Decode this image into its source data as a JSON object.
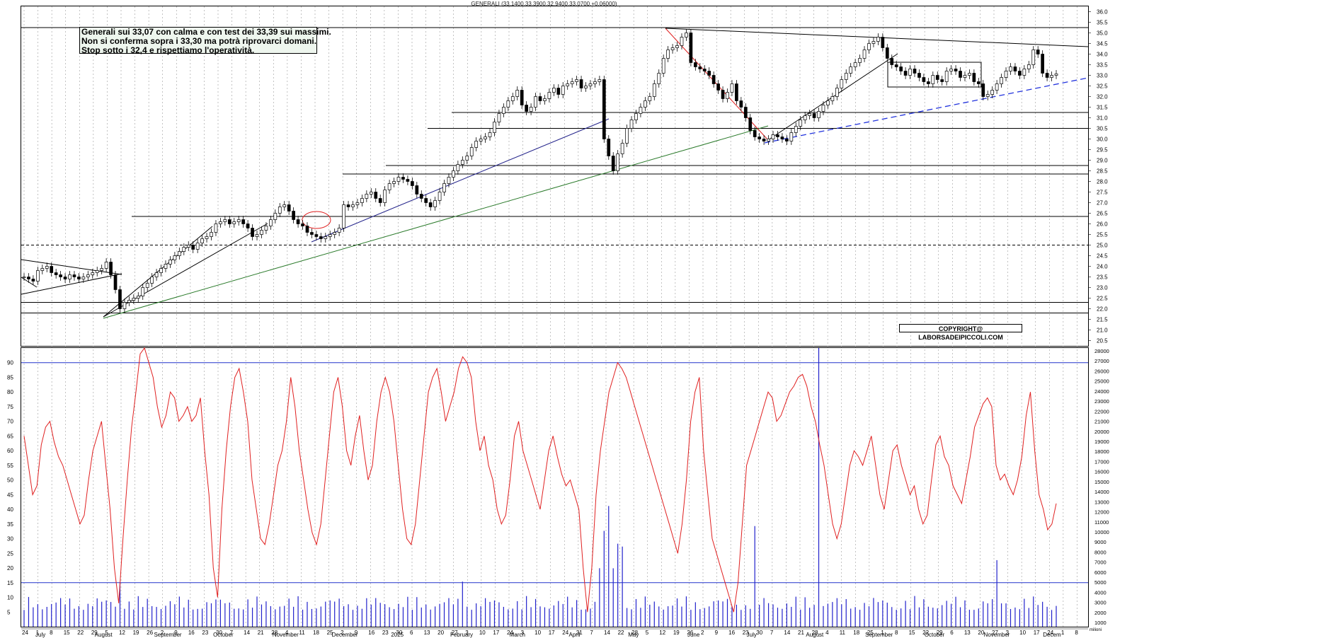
{
  "chart_data": [
    {
      "type": "candlestick",
      "title": "GENERALI (33.1400,33.3900,32.9400,33.0700,+0.06000)",
      "y_ticks": [
        "36.0",
        "35.5",
        "35.0",
        "34.5",
        "34.0",
        "33.5",
        "33.0",
        "32.5",
        "32.0",
        "31.5",
        "31.0",
        "30.5",
        "30.0",
        "29.5",
        "29.0",
        "28.5",
        "28.0",
        "27.5",
        "27.0",
        "26.5",
        "26.0",
        "25.5",
        "25.0",
        "24.5",
        "24.0",
        "23.5",
        "23.0",
        "22.5",
        "22.0",
        "21.5",
        "21.0",
        "20.5"
      ],
      "ylim": [
        20.25,
        36.25
      ],
      "x_tick_labels": [
        "24",
        "1",
        "8",
        "15",
        "22",
        "29",
        "5",
        "12",
        "19",
        "26",
        "2",
        "9",
        "16",
        "23",
        "30",
        "7",
        "14",
        "21",
        "28",
        "4",
        "11",
        "18",
        "25",
        "2",
        "9",
        "16",
        "23",
        "30",
        "6",
        "13",
        "20",
        "27",
        "3",
        "10",
        "17",
        "24",
        "3",
        "10",
        "17",
        "24",
        "31",
        "7",
        "14",
        "22",
        "28",
        "5",
        "12",
        "19",
        "26",
        "2",
        "9",
        "16",
        "23",
        "30",
        "7",
        "14",
        "21",
        "28",
        "4",
        "11",
        "18",
        "25",
        "1",
        "8",
        "15",
        "22",
        "29",
        "6",
        "13",
        "20",
        "27",
        "3",
        "10",
        "17",
        "24",
        "1",
        "8"
      ],
      "month_labels": [
        "July",
        "August",
        "September",
        "October",
        "November",
        "December",
        "2025",
        "February",
        "March",
        "April",
        "May",
        "June",
        "July",
        "August",
        "September",
        "October",
        "November",
        "Decem"
      ],
      "annotation_lines": [
        "Generali sui 33,07 con calma e con test dei 33,39 sui massimi.",
        "Non si conferma sopra i 33,30 ma potrà riprovarci domani.",
        "Stop sotto i 32,4 e rispettiamo l'operatività."
      ],
      "copyright": "COPYRIGHT@ LABORSADEIPICCOLI.COM",
      "horizontal_levels": [
        35.25,
        31.25,
        30.5,
        28.75,
        28.35,
        26.35,
        25.0,
        22.3,
        21.8
      ],
      "closes": [
        23.5,
        23.4,
        23.3,
        23.8,
        23.9,
        24.0,
        23.7,
        23.6,
        23.5,
        23.4,
        23.6,
        23.5,
        23.4,
        23.5,
        23.6,
        23.7,
        23.8,
        23.9,
        24.2,
        23.6,
        22.9,
        22.0,
        22.3,
        22.4,
        22.5,
        22.6,
        23.0,
        23.2,
        23.5,
        23.7,
        23.9,
        24.1,
        24.3,
        24.5,
        24.7,
        24.9,
        25.0,
        24.8,
        25.1,
        25.3,
        25.4,
        25.6,
        26.0,
        26.1,
        26.2,
        26.0,
        26.1,
        26.2,
        26.0,
        25.8,
        25.4,
        25.5,
        25.7,
        25.9,
        26.2,
        26.5,
        26.8,
        26.9,
        26.6,
        26.2,
        26.0,
        25.9,
        25.6,
        25.5,
        25.4,
        25.3,
        25.4,
        25.5,
        25.6,
        25.8,
        26.9,
        26.8,
        26.9,
        27.0,
        27.2,
        27.4,
        27.5,
        27.2,
        27.0,
        27.6,
        27.9,
        28.0,
        28.2,
        28.1,
        28.0,
        27.8,
        27.4,
        27.2,
        27.0,
        26.8,
        27.1,
        27.5,
        27.9,
        28.2,
        28.5,
        28.8,
        29.0,
        29.2,
        29.6,
        29.9,
        30.0,
        30.1,
        30.3,
        30.8,
        31.2,
        31.5,
        31.8,
        32.0,
        32.3,
        31.6,
        31.3,
        31.5,
        32.0,
        31.8,
        31.9,
        32.2,
        32.4,
        32.1,
        32.5,
        32.6,
        32.7,
        32.8,
        32.4,
        32.5,
        32.6,
        32.7,
        32.8,
        30.0,
        29.2,
        28.5,
        29.3,
        29.8,
        30.5,
        30.9,
        31.2,
        31.5,
        31.8,
        32.0,
        32.6,
        33.1,
        33.8,
        34.2,
        34.3,
        34.4,
        34.8,
        35.0,
        33.6,
        33.4,
        33.3,
        33.2,
        33.0,
        32.6,
        32.3,
        31.9,
        32.2,
        32.6,
        31.8,
        31.5,
        31.0,
        30.4,
        30.1,
        30.0,
        29.9,
        30.0,
        30.2,
        30.1,
        30.0,
        29.9,
        30.3,
        30.6,
        30.9,
        31.1,
        31.2,
        31.0,
        31.3,
        31.6,
        31.8,
        32.0,
        32.4,
        32.8,
        33.1,
        33.4,
        33.6,
        33.8,
        34.2,
        34.5,
        34.6,
        34.8,
        34.3,
        33.8,
        33.5,
        33.4,
        33.2,
        33.0,
        33.3,
        33.1,
        32.9,
        32.7,
        32.6,
        33.0,
        32.8,
        32.7,
        33.2,
        33.3,
        33.2,
        32.9,
        33.0,
        33.1,
        32.7,
        32.6,
        32.0,
        32.1,
        32.3,
        32.6,
        32.9,
        33.2,
        33.4,
        33.2,
        33.0,
        33.3,
        33.5,
        34.2,
        34.0,
        33.1,
        32.9,
        33.0,
        33.07
      ],
      "trendlines_note": "",
      "sub_chart": {
        "type": "line+bar",
        "y_ticks_left": [
          "90",
          "85",
          "80",
          "75",
          "70",
          "65",
          "60",
          "55",
          "50",
          "45",
          "40",
          "35",
          "30",
          "25",
          "20",
          "15",
          "10",
          "5"
        ],
        "y_ticks_right": [
          "28000",
          "27000",
          "26000",
          "25000",
          "24000",
          "23000",
          "22000",
          "21000",
          "20000",
          "19000",
          "18000",
          "17000",
          "16000",
          "15000",
          "14000",
          "13000",
          "12000",
          "11000",
          "10000",
          "9000",
          "8000",
          "7000",
          "6000",
          "5000",
          "4000",
          "3000",
          "2000",
          "1000"
        ],
        "right_axis_tail": "milioni",
        "ylim": [
          0,
          95
        ],
        "level_lines": [
          90,
          15
        ],
        "oscillator": [
          65,
          55,
          45,
          48,
          62,
          68,
          70,
          63,
          58,
          55,
          50,
          45,
          40,
          35,
          38,
          50,
          60,
          65,
          70,
          55,
          40,
          20,
          8,
          30,
          50,
          68,
          80,
          93,
          95,
          90,
          85,
          75,
          68,
          72,
          80,
          78,
          70,
          72,
          75,
          70,
          72,
          78,
          60,
          45,
          20,
          10,
          40,
          60,
          75,
          85,
          88,
          80,
          70,
          50,
          40,
          30,
          28,
          35,
          45,
          55,
          60,
          70,
          85,
          75,
          60,
          50,
          40,
          32,
          28,
          35,
          50,
          65,
          80,
          85,
          75,
          60,
          55,
          65,
          72,
          60,
          50,
          55,
          70,
          80,
          85,
          80,
          70,
          55,
          40,
          30,
          28,
          35,
          50,
          65,
          80,
          85,
          88,
          80,
          70,
          75,
          80,
          88,
          92,
          90,
          85,
          70,
          60,
          65,
          55,
          50,
          40,
          35,
          38,
          50,
          65,
          70,
          60,
          55,
          50,
          45,
          40,
          50,
          60,
          65,
          58,
          52,
          48,
          50,
          45,
          40,
          20,
          5,
          20,
          45,
          60,
          70,
          80,
          85,
          90,
          88,
          85,
          80,
          75,
          70,
          65,
          60,
          55,
          50,
          45,
          40,
          35,
          30,
          25,
          35,
          50,
          70,
          80,
          85,
          60,
          45,
          30,
          25,
          20,
          15,
          10,
          5,
          15,
          35,
          55,
          60,
          65,
          70,
          75,
          80,
          78,
          70,
          72,
          76,
          80,
          82,
          85,
          86,
          82,
          75,
          70,
          62,
          55,
          45,
          35,
          30,
          35,
          45,
          55,
          60,
          58,
          55,
          60,
          65,
          55,
          45,
          40,
          50,
          60,
          62,
          55,
          50,
          45,
          48,
          40,
          35,
          38,
          50,
          62,
          65,
          58,
          55,
          48,
          45,
          42,
          50,
          58,
          68,
          72,
          76,
          78,
          75,
          55,
          50,
          52,
          48,
          45,
          50,
          58,
          72,
          80,
          60,
          45,
          40,
          33,
          35,
          42
        ]
      }
    }
  ]
}
